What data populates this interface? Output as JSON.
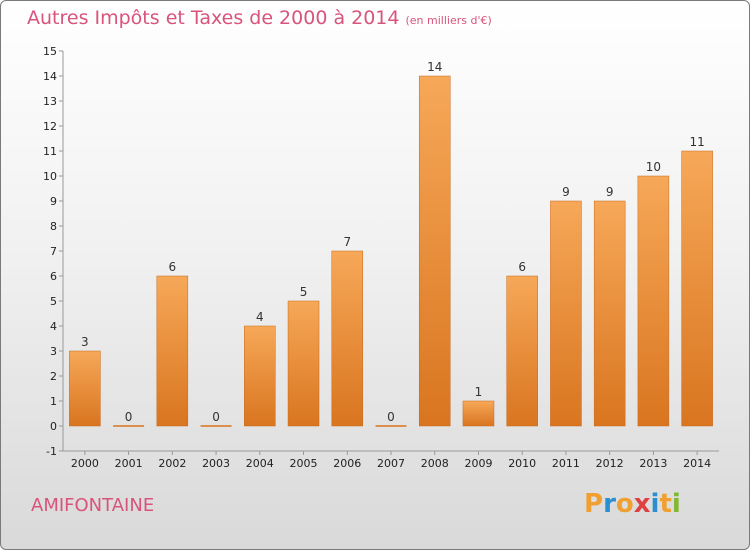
{
  "title": "Autres Impôts et Taxes de 2000 à 2014",
  "unit_label": "(en milliers d'€)",
  "place": "AMIFONTAINE",
  "logo": {
    "text": "Proxiti",
    "colors": [
      "#f0a030",
      "#2a8fd0",
      "#f0a030",
      "#e04040",
      "#2a8fd0",
      "#f0a030",
      "#80b830"
    ]
  },
  "colors": {
    "title": "#d8547c",
    "bar_light": "#f6a858",
    "bar_dark": "#d97520"
  },
  "chart_data": {
    "type": "bar",
    "title": "Autres Impôts et Taxes de 2000 à 2014",
    "categories": [
      "2000",
      "2001",
      "2002",
      "2003",
      "2004",
      "2005",
      "2006",
      "2007",
      "2008",
      "2009",
      "2010",
      "2011",
      "2012",
      "2013",
      "2014"
    ],
    "values": [
      3,
      0,
      6,
      0,
      4,
      5,
      7,
      0,
      14,
      1,
      6,
      9,
      9,
      10,
      11
    ],
    "ylim": [
      -1,
      15
    ],
    "yticks": [
      -1,
      0,
      1,
      2,
      3,
      4,
      5,
      6,
      7,
      8,
      9,
      10,
      11,
      12,
      13,
      14,
      15
    ],
    "grid": false,
    "legend": "none"
  }
}
